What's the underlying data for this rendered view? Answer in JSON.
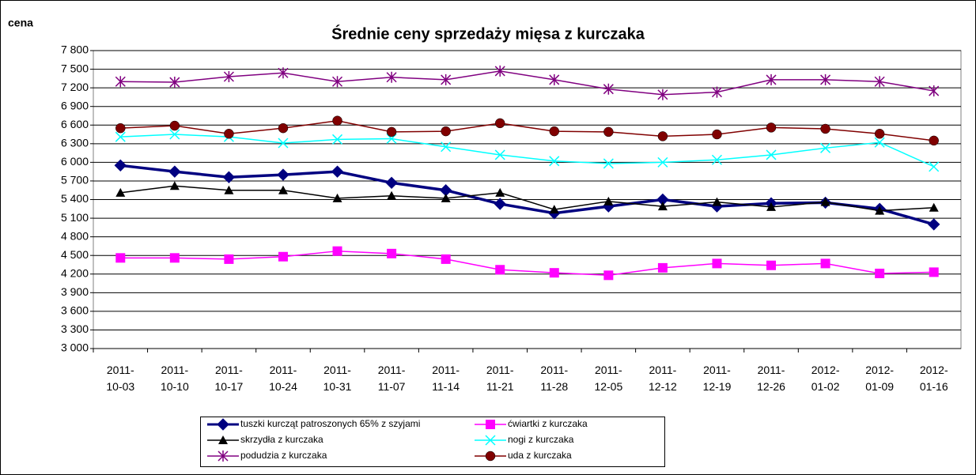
{
  "chart_data": {
    "type": "line",
    "title": "Średnie ceny sprzedaży mięsa z kurczaka",
    "y_label": "cena",
    "categories": [
      "2011-10-03",
      "2011-10-10",
      "2011-10-17",
      "2011-10-24",
      "2011-10-31",
      "2011-11-07",
      "2011-11-14",
      "2011-11-21",
      "2011-11-28",
      "2011-12-05",
      "2011-12-12",
      "2011-12-19",
      "2011-12-26",
      "2012-01-02",
      "2012-01-09",
      "2012-01-16"
    ],
    "series": [
      {
        "name": "tuszki kurcząt patroszonych 65% z szyjami",
        "color": "#000080",
        "marker": "diamond",
        "values": [
          5950,
          5850,
          5760,
          5800,
          5850,
          5670,
          5550,
          5330,
          5180,
          5290,
          5400,
          5290,
          5340,
          5350,
          5250,
          5000
        ]
      },
      {
        "name": "ćwiartki z kurczaka",
        "color": "#ff00ff",
        "marker": "square",
        "values": [
          4460,
          4460,
          4440,
          4480,
          4570,
          4530,
          4440,
          4270,
          4220,
          4180,
          4300,
          4370,
          4340,
          4370,
          4210,
          4230
        ]
      },
      {
        "name": "skrzydła z kurczaka",
        "color": "#000000",
        "marker": "triangle",
        "values": [
          5510,
          5620,
          5550,
          5550,
          5420,
          5460,
          5420,
          5510,
          5240,
          5370,
          5290,
          5360,
          5280,
          5360,
          5220,
          5270
        ]
      },
      {
        "name": "nogi z kurczaka",
        "color": "#00ffff",
        "marker": "x",
        "values": [
          6410,
          6450,
          6410,
          6310,
          6370,
          6380,
          6250,
          6120,
          6020,
          5980,
          6000,
          6040,
          6120,
          6230,
          6320,
          5930
        ]
      },
      {
        "name": "podudzia z kurczaka",
        "color": "#800080",
        "marker": "star",
        "values": [
          7300,
          7290,
          7380,
          7440,
          7300,
          7370,
          7330,
          7470,
          7330,
          7180,
          7090,
          7130,
          7330,
          7330,
          7300,
          7150
        ]
      },
      {
        "name": "uda z kurczaka",
        "color": "#800000",
        "marker": "circle",
        "values": [
          6550,
          6590,
          6460,
          6550,
          6670,
          6490,
          6500,
          6630,
          6500,
          6490,
          6420,
          6450,
          6560,
          6540,
          6460,
          6350
        ]
      }
    ],
    "ylim": [
      3000,
      7800
    ],
    "yticks": [
      {
        "value": 3000,
        "label": "3 000"
      },
      {
        "value": 3300,
        "label": "3 300"
      },
      {
        "value": 3600,
        "label": "3 600"
      },
      {
        "value": 3900,
        "label": "3 900"
      },
      {
        "value": 4200,
        "label": "4 200"
      },
      {
        "value": 4500,
        "label": "4 500"
      },
      {
        "value": 4800,
        "label": "4 800"
      },
      {
        "value": 5100,
        "label": "5 100"
      },
      {
        "value": 5400,
        "label": "5 400"
      },
      {
        "value": 5700,
        "label": "5 700"
      },
      {
        "value": 6000,
        "label": "6 000"
      },
      {
        "value": 6300,
        "label": "6 300"
      },
      {
        "value": 6600,
        "label": "6 600"
      },
      {
        "value": 6900,
        "label": "6 900"
      },
      {
        "value": 7200,
        "label": "7 200"
      },
      {
        "value": 7500,
        "label": "7 500"
      },
      {
        "value": 7800,
        "label": "7 800"
      }
    ],
    "grid": true
  }
}
